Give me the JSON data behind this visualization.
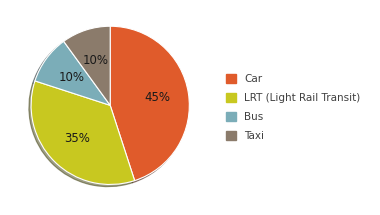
{
  "labels": [
    "Car",
    "LRT (Light Rail Transit)",
    "Bus",
    "Taxi"
  ],
  "values": [
    45,
    35,
    10,
    10
  ],
  "colors": [
    "#E05B2B",
    "#C8C820",
    "#7BADB8",
    "#8B7B6B"
  ],
  "pct_labels": [
    "45%",
    "35%",
    "10%",
    "10%"
  ],
  "legend_labels": [
    "Car",
    "LRT (Light Rail Transit)",
    "Bus",
    "Taxi"
  ],
  "legend_colors": [
    "#E05B2B",
    "#C8C820",
    "#7BADB8",
    "#8B7B6B"
  ],
  "startangle": 90,
  "counterclock": false,
  "background_color": "#ffffff",
  "legend_text_color": "#404040",
  "pct_fontsize": 8.5,
  "legend_fontsize": 7.5
}
